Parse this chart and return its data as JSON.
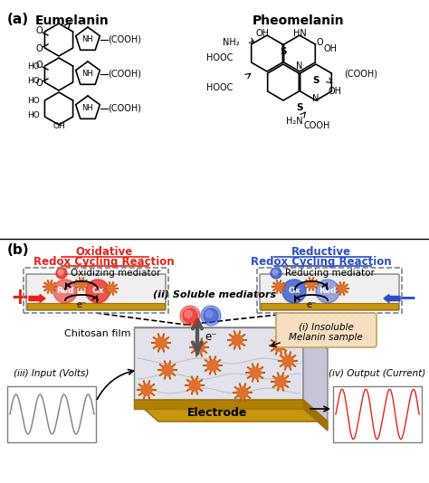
{
  "title_a": "(a)",
  "title_b": "(b)",
  "eumelanin_label": "Eumelanin",
  "pheomelanin_label": "Pheomelanin",
  "oxidative_line1": "Oxidative",
  "oxidative_line2": "Redox Cycling Reaction",
  "reductive_line1": "Reductive",
  "reductive_line2": "Redox Cycling Reaction",
  "ox_mediator": "Oxidizing mediator",
  "red_mediator": "Reducing mediator",
  "soluble": "(ii) Soluble mediators",
  "insoluble_line1": "(i) Insoluble",
  "insoluble_line2": "Melanin sample",
  "chitosan": "Chitosan film",
  "electrode": "Electrode",
  "input_label": "(iii) Input (Volts)",
  "output_label": "(iv) Output (Current)",
  "red_color": "#e8231a",
  "blue_color": "#2b4ec8",
  "gold_color": "#c8960c",
  "bg_color": "#ffffff",
  "panel_bg": "#f0eeee",
  "insoluble_bg": "#f5dfc0",
  "fig_width": 4.74,
  "fig_height": 5.34
}
